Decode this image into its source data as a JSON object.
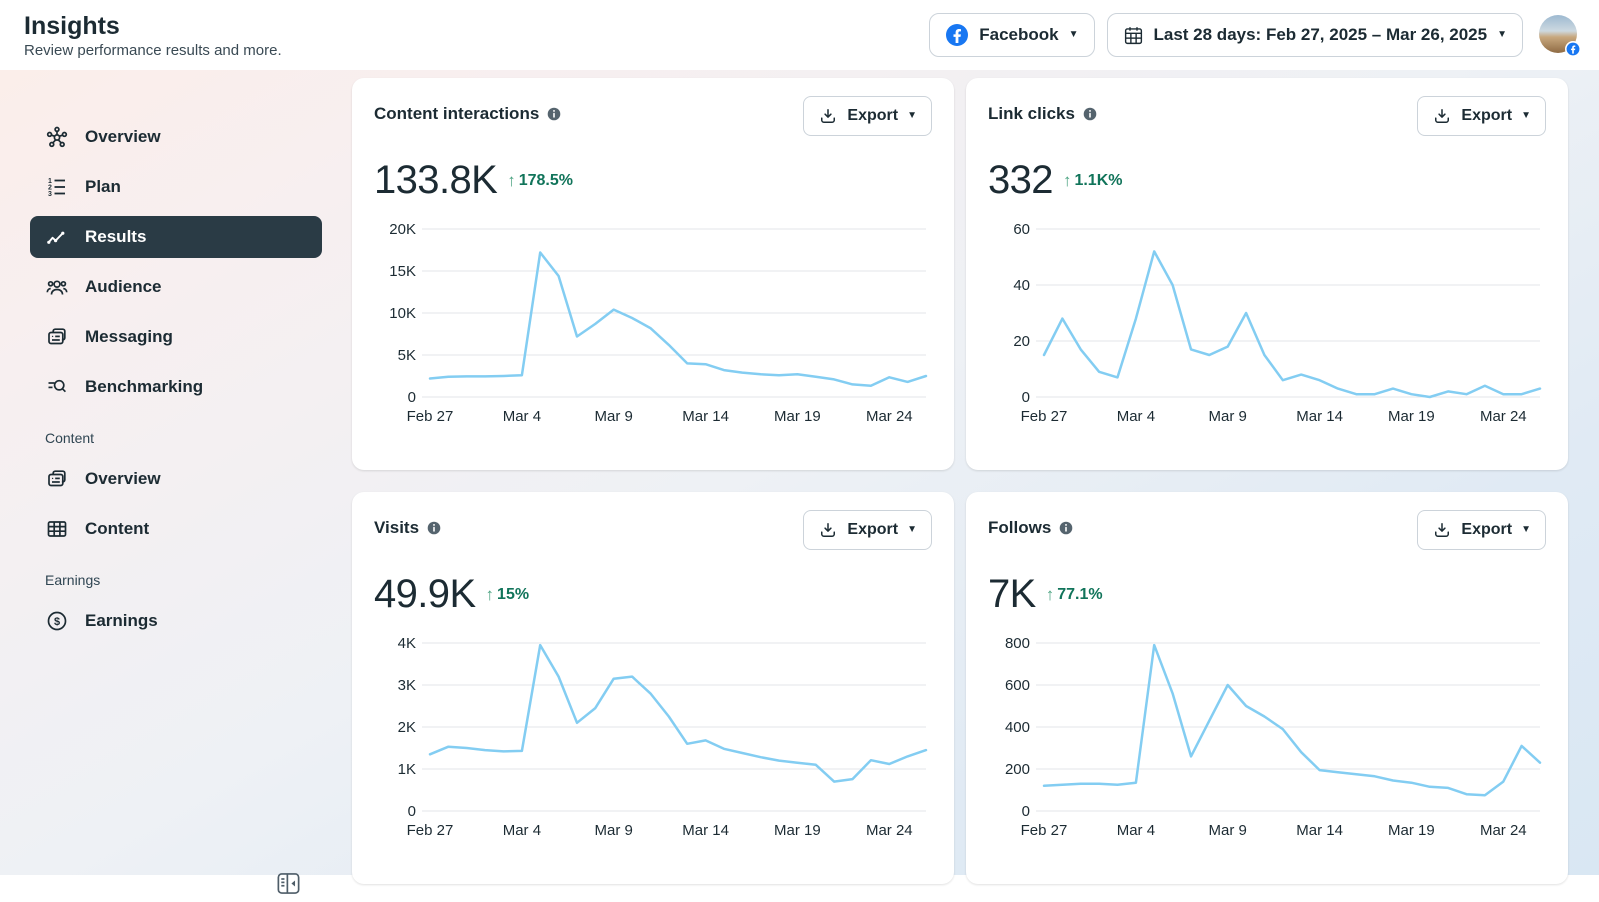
{
  "header": {
    "title": "Insights",
    "subtitle": "Review performance results and more.",
    "platform_button": {
      "label": "Facebook",
      "icon": "facebook-logo-icon"
    },
    "date_button": {
      "label": "Last 28 days: Feb 27, 2025 – Mar 26, 2025",
      "icon": "calendar-icon"
    }
  },
  "glyphs": {
    "up_arrow": "↑",
    "caret": "▼"
  },
  "export_label": "Export",
  "sidebar": {
    "items": [
      {
        "label": "Overview",
        "icon": "nodes-icon",
        "selected": false
      },
      {
        "label": "Plan",
        "icon": "numbered-list-icon",
        "selected": false
      },
      {
        "label": "Results",
        "icon": "trend-line-icon",
        "selected": true
      },
      {
        "label": "Audience",
        "icon": "people-icon",
        "selected": false
      },
      {
        "label": "Messaging",
        "icon": "message-cards-icon",
        "selected": false
      },
      {
        "label": "Benchmarking",
        "icon": "search-lines-icon",
        "selected": false
      }
    ],
    "content_section": {
      "label": "Content",
      "items": [
        {
          "label": "Overview",
          "icon": "overview-cards-icon"
        },
        {
          "label": "Content",
          "icon": "table-icon"
        }
      ]
    },
    "earnings_section": {
      "label": "Earnings",
      "items": [
        {
          "label": "Earnings",
          "icon": "dollar-circle-icon"
        }
      ]
    }
  },
  "cards": [
    {
      "title": "Content interactions",
      "value": "133.8K",
      "delta": "178.5%"
    },
    {
      "title": "Link clicks",
      "value": "332",
      "delta": "1.1K%"
    },
    {
      "title": "Visits",
      "value": "49.9K",
      "delta": "15%"
    },
    {
      "title": "Follows",
      "value": "7K",
      "delta": "77.1%"
    }
  ],
  "chart_data": [
    {
      "type": "line",
      "title": "Content interactions",
      "total": "133.8K",
      "change": "+178.5%",
      "ylim": [
        0,
        20000
      ],
      "yticks": [
        {
          "value": 0,
          "label": "0"
        },
        {
          "value": 5000,
          "label": "5K"
        },
        {
          "value": 10000,
          "label": "10K"
        },
        {
          "value": 15000,
          "label": "15K"
        },
        {
          "value": 20000,
          "label": "20K"
        }
      ],
      "xticks": [
        {
          "i": 0,
          "label": "Feb 27"
        },
        {
          "i": 5,
          "label": "Mar 4"
        },
        {
          "i": 10,
          "label": "Mar 9"
        },
        {
          "i": 15,
          "label": "Mar 14"
        },
        {
          "i": 20,
          "label": "Mar 19"
        },
        {
          "i": 25,
          "label": "Mar 24"
        }
      ],
      "values": [
        2200,
        2400,
        2450,
        2450,
        2500,
        2600,
        17200,
        14400,
        7200,
        8700,
        10400,
        9400,
        8200,
        6200,
        4000,
        3900,
        3200,
        2900,
        2700,
        2600,
        2700,
        2400,
        2100,
        1500,
        1350,
        2350,
        1800,
        2500
      ]
    },
    {
      "type": "line",
      "title": "Link clicks",
      "total": "332",
      "change": "+1.1K%",
      "ylim": [
        0,
        60
      ],
      "yticks": [
        {
          "value": 0,
          "label": "0"
        },
        {
          "value": 20,
          "label": "20"
        },
        {
          "value": 40,
          "label": "40"
        },
        {
          "value": 60,
          "label": "60"
        }
      ],
      "xticks": [
        {
          "i": 0,
          "label": "Feb 27"
        },
        {
          "i": 5,
          "label": "Mar 4"
        },
        {
          "i": 10,
          "label": "Mar 9"
        },
        {
          "i": 15,
          "label": "Mar 14"
        },
        {
          "i": 20,
          "label": "Mar 19"
        },
        {
          "i": 25,
          "label": "Mar 24"
        }
      ],
      "values": [
        15,
        28,
        17,
        9,
        7,
        28,
        52,
        40,
        17,
        15,
        18,
        30,
        15,
        6,
        8,
        6,
        3,
        1,
        1,
        3,
        1,
        0,
        2,
        1,
        4,
        1,
        1,
        3
      ]
    },
    {
      "type": "line",
      "title": "Visits",
      "total": "49.9K",
      "change": "+15%",
      "ylim": [
        0,
        4000
      ],
      "yticks": [
        {
          "value": 0,
          "label": "0"
        },
        {
          "value": 1000,
          "label": "1K"
        },
        {
          "value": 2000,
          "label": "2K"
        },
        {
          "value": 3000,
          "label": "3K"
        },
        {
          "value": 4000,
          "label": "4K"
        }
      ],
      "xticks": [
        {
          "i": 0,
          "label": "Feb 27"
        },
        {
          "i": 5,
          "label": "Mar 4"
        },
        {
          "i": 10,
          "label": "Mar 9"
        },
        {
          "i": 15,
          "label": "Mar 14"
        },
        {
          "i": 20,
          "label": "Mar 19"
        },
        {
          "i": 25,
          "label": "Mar 24"
        }
      ],
      "values": [
        1350,
        1530,
        1500,
        1450,
        1420,
        1430,
        3950,
        3200,
        2100,
        2450,
        3150,
        3200,
        2800,
        2250,
        1600,
        1680,
        1480,
        1380,
        1280,
        1200,
        1150,
        1100,
        700,
        760,
        1210,
        1120,
        1300,
        1450
      ]
    },
    {
      "type": "line",
      "title": "Follows",
      "total": "7K",
      "change": "+77.1%",
      "ylim": [
        0,
        800
      ],
      "yticks": [
        {
          "value": 0,
          "label": "0"
        },
        {
          "value": 200,
          "label": "200"
        },
        {
          "value": 400,
          "label": "400"
        },
        {
          "value": 600,
          "label": "600"
        },
        {
          "value": 800,
          "label": "800"
        }
      ],
      "xticks": [
        {
          "i": 0,
          "label": "Feb 27"
        },
        {
          "i": 5,
          "label": "Mar 4"
        },
        {
          "i": 10,
          "label": "Mar 9"
        },
        {
          "i": 15,
          "label": "Mar 14"
        },
        {
          "i": 20,
          "label": "Mar 19"
        },
        {
          "i": 25,
          "label": "Mar 24"
        }
      ],
      "values": [
        120,
        125,
        130,
        130,
        125,
        135,
        790,
        560,
        260,
        430,
        600,
        500,
        450,
        390,
        280,
        195,
        185,
        175,
        165,
        145,
        135,
        115,
        110,
        80,
        75,
        140,
        310,
        230
      ]
    }
  ],
  "colors": {
    "facebook_blue": "#1877F2",
    "line": "#83CDF2",
    "positive_text": "#11745A",
    "positive_arrow": "#4BA381",
    "selected_nav_bg": "#2A3B45",
    "text_dark": "#1C2B33",
    "gridline": "#E3E6EA"
  }
}
